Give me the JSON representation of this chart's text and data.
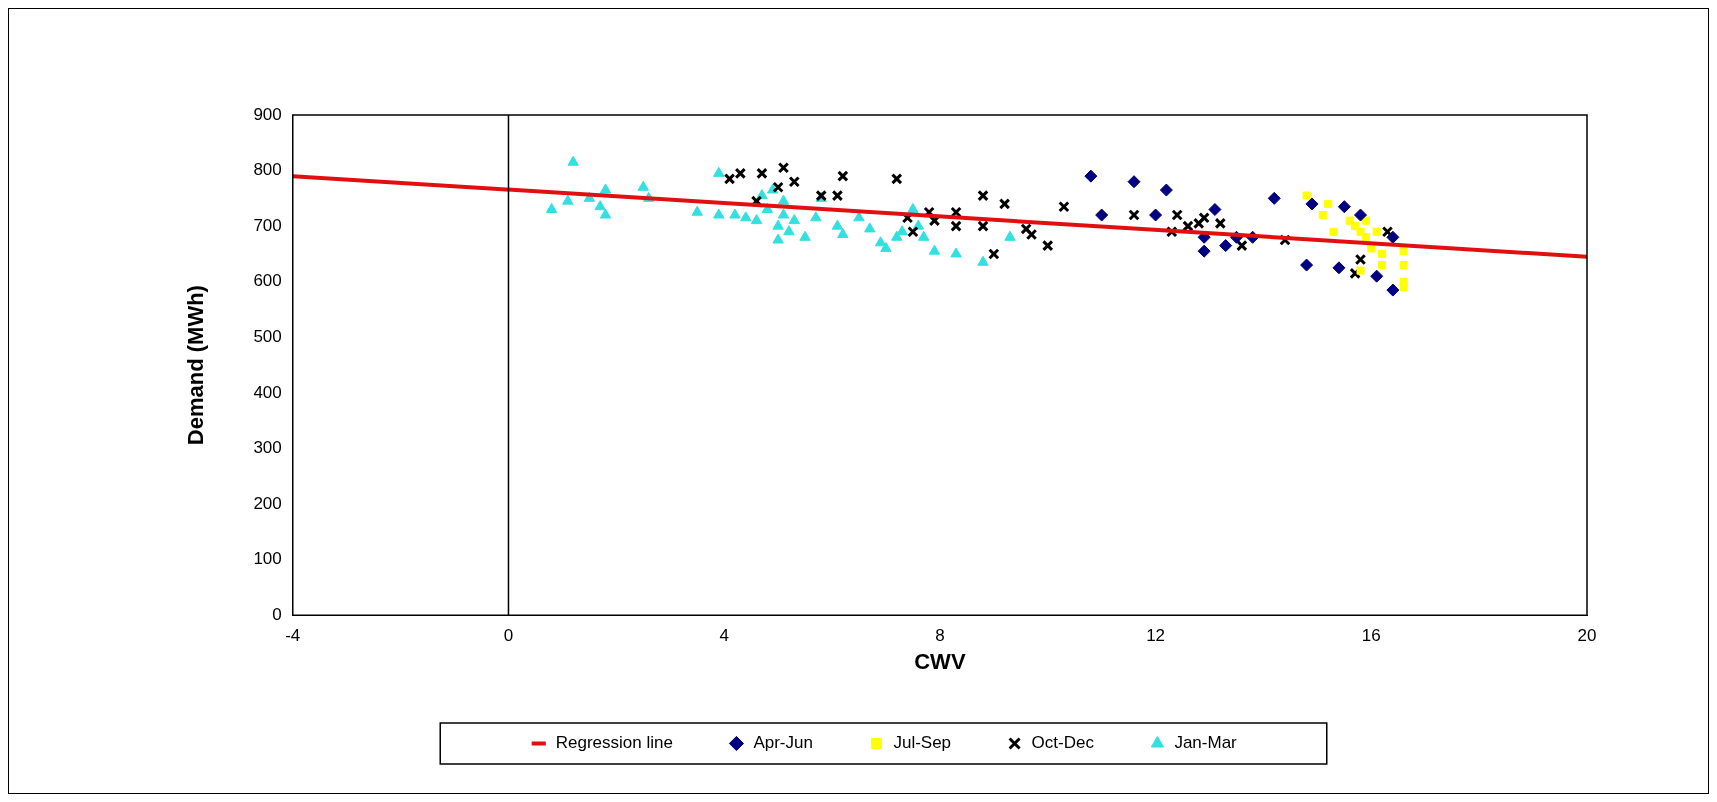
{
  "chart_data": {
    "type": "scatter",
    "xlabel": "CWV",
    "ylabel": "Demand (MWh)",
    "xlim": [
      -4,
      20
    ],
    "xticks": [
      -4,
      0,
      4,
      8,
      12,
      16,
      20
    ],
    "ylim": [
      0,
      900
    ],
    "yticks": [
      0,
      100,
      200,
      300,
      400,
      500,
      600,
      700,
      800,
      900
    ],
    "grid": false,
    "legend": "bottom",
    "ref_lines": [
      {
        "axis": "x",
        "value": 0,
        "color": "#000000"
      }
    ],
    "series": [
      {
        "name": "Regression line",
        "type": "line",
        "color": "#e01010",
        "marker": "none",
        "x": [
          -4,
          20
        ],
        "values": [
          790,
          645
        ]
      },
      {
        "name": "Apr-Jun",
        "type": "scatter",
        "color": "#000080",
        "marker": "diamond",
        "x": [
          10.8,
          11.0,
          11.6,
          12.0,
          12.2,
          12.9,
          12.9,
          13.1,
          13.3,
          13.5,
          13.8,
          14.2,
          14.8,
          14.9,
          15.4,
          15.5,
          16.1,
          16.4,
          16.4,
          15.8
        ],
        "values": [
          790,
          720,
          780,
          720,
          765,
          655,
          680,
          730,
          665,
          680,
          680,
          750,
          630,
          740,
          625,
          735,
          610,
          585,
          680,
          720
        ]
      },
      {
        "name": "Jul-Sep",
        "type": "scatter",
        "color": "#ffff00",
        "marker": "square",
        "x": [
          14.8,
          15.1,
          15.2,
          15.3,
          15.6,
          15.7,
          15.8,
          15.9,
          15.9,
          16.0,
          16.1,
          16.2,
          16.2,
          16.6,
          16.6,
          16.6,
          16.6,
          15.8
        ],
        "values": [
          755,
          720,
          740,
          690,
          710,
          700,
          690,
          680,
          710,
          660,
          690,
          650,
          630,
          655,
          630,
          600,
          590,
          620
        ]
      },
      {
        "name": "Oct-Dec",
        "type": "scatter",
        "color": "#000000",
        "marker": "cross",
        "x": [
          4.1,
          4.3,
          4.7,
          4.6,
          5.0,
          5.1,
          5.3,
          5.8,
          6.1,
          6.2,
          7.2,
          7.4,
          7.5,
          7.8,
          7.9,
          8.3,
          8.3,
          8.8,
          8.8,
          9.2,
          9.0,
          9.6,
          9.7,
          10.0,
          10.3,
          11.6,
          12.3,
          12.4,
          12.6,
          12.8,
          12.9,
          13.2,
          13.6,
          14.4,
          15.7,
          15.8,
          16.3
        ],
        "values": [
          785,
          795,
          795,
          745,
          770,
          805,
          780,
          755,
          755,
          790,
          785,
          715,
          690,
          725,
          710,
          725,
          700,
          755,
          700,
          740,
          650,
          695,
          685,
          665,
          735,
          720,
          690,
          720,
          700,
          705,
          715,
          705,
          665,
          675,
          615,
          640,
          690
        ]
      },
      {
        "name": "Jan-Mar",
        "type": "scatter",
        "color": "#33e0e0",
        "marker": "triangle",
        "x": [
          0.8,
          1.1,
          1.2,
          1.5,
          1.7,
          1.8,
          1.8,
          2.5,
          2.6,
          3.5,
          3.9,
          3.9,
          4.2,
          4.4,
          4.6,
          4.7,
          4.8,
          4.9,
          5.0,
          5.0,
          5.1,
          5.1,
          5.2,
          5.3,
          5.5,
          5.7,
          5.8,
          6.1,
          6.2,
          6.5,
          6.7,
          6.9,
          7.0,
          7.2,
          7.3,
          7.5,
          7.6,
          7.7,
          7.9,
          8.3,
          8.8,
          9.3
        ],
        "values": [
          730,
          745,
          815,
          750,
          735,
          720,
          765,
          770,
          750,
          725,
          720,
          795,
          720,
          715,
          710,
          755,
          730,
          765,
          700,
          675,
          720,
          745,
          690,
          710,
          680,
          715,
          750,
          700,
          685,
          715,
          695,
          670,
          660,
          680,
          690,
          730,
          700,
          680,
          655,
          650,
          635,
          680
        ]
      }
    ]
  }
}
